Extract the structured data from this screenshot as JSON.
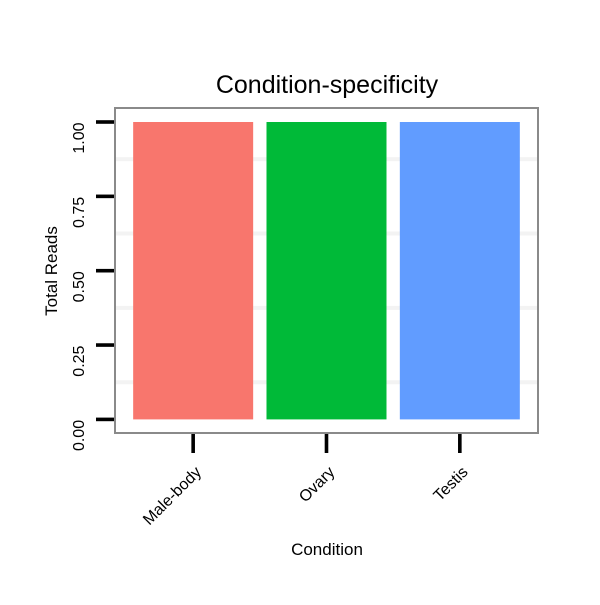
{
  "chart_data": {
    "type": "bar",
    "title": "Condition-specificity",
    "xlabel": "Condition",
    "ylabel": "Total Reads",
    "categories": [
      "Male-body",
      "Ovary",
      "Testis"
    ],
    "values": [
      1.0,
      1.0,
      1.0
    ],
    "bar_colors": [
      "#F8766D",
      "#00BA38",
      "#619CFF"
    ],
    "ylim": [
      0,
      1
    ],
    "yticks": [
      0.0,
      0.25,
      0.5,
      0.75,
      1.0
    ],
    "ytick_labels": [
      "0.00",
      "0.25",
      "0.50",
      "0.75",
      "1.00"
    ],
    "grid": "minor-only",
    "legend": "none",
    "panel_border_color": "#8a8a8a",
    "minor_grid_color": "#f3f3f3",
    "tick_color": "#000000"
  }
}
